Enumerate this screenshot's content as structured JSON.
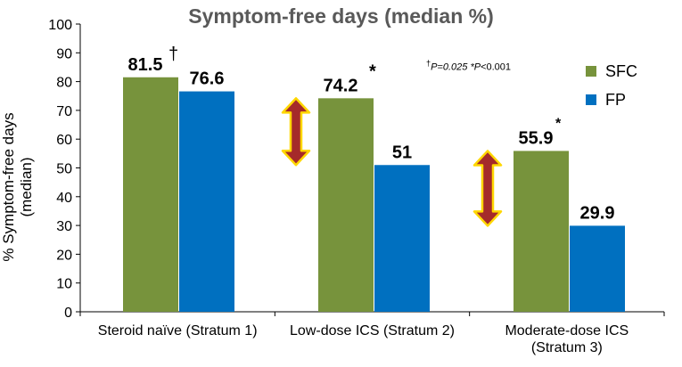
{
  "chart_data": {
    "type": "bar",
    "title": "Symptom-free days (median %)",
    "ylabel": "% Symptom-free days (median)",
    "xlabel": "",
    "ylim": [
      0,
      100
    ],
    "yticks": [
      0,
      10,
      20,
      30,
      40,
      50,
      60,
      70,
      80,
      90,
      100
    ],
    "categories": [
      [
        "Steroid naïve  (Stratum 1)"
      ],
      [
        "Low-dose ICS  (Stratum 2)"
      ],
      [
        "Moderate-dose ICS",
        "(Stratum 3)"
      ]
    ],
    "series": [
      {
        "name": "SFC",
        "color": "#77933c",
        "values": [
          81.5,
          74.2,
          55.9
        ],
        "labels": [
          "81.5",
          "74.2",
          "55.9"
        ],
        "markers": [
          "†",
          "*",
          "*"
        ]
      },
      {
        "name": "FP",
        "color": "#0070c0",
        "values": [
          76.6,
          51,
          29.9
        ],
        "labels": [
          "76.6",
          "51",
          "29.9"
        ],
        "markers": [
          "",
          "",
          ""
        ]
      }
    ],
    "annotations": {
      "p_note_prefix": "†",
      "p_note_mid": "P=0.025 *",
      "p_note_p": "P",
      "p_note_end": "<0.001"
    },
    "arrow_color": "#a52a2a",
    "arrow_outline": "#ffd700",
    "legend_position": "right",
    "grid": false
  }
}
